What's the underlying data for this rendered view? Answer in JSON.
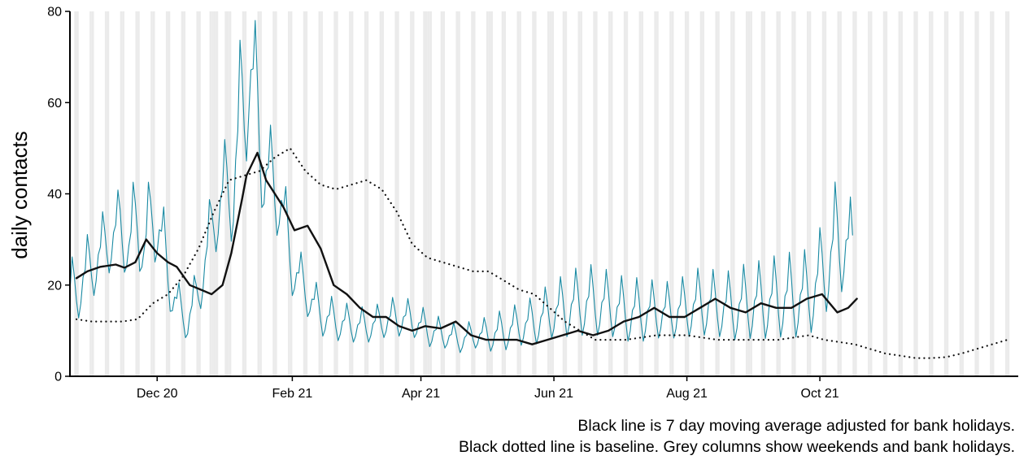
{
  "chart_data": {
    "type": "line",
    "ylabel": "daily contacts",
    "xlabel": "",
    "ylim": [
      0,
      80
    ],
    "xlim": [
      "2020-10-22",
      "2021-12-31"
    ],
    "y_ticks": [
      0,
      20,
      40,
      60,
      80
    ],
    "x_ticks": [
      {
        "date": "2020-12-01",
        "label": "Dec 20"
      },
      {
        "date": "2021-02-01",
        "label": "Feb 21"
      },
      {
        "date": "2021-04-01",
        "label": "Apr 21"
      },
      {
        "date": "2021-06-01",
        "label": "Jun 21"
      },
      {
        "date": "2021-08-01",
        "label": "Aug 21"
      },
      {
        "date": "2021-10-01",
        "label": "Oct 21"
      }
    ],
    "grid": false,
    "weekend_shading": true,
    "bank_holidays": [
      "2020-12-25",
      "2020-12-28",
      "2021-01-01",
      "2021-04-02",
      "2021-04-05",
      "2021-05-03",
      "2021-05-31",
      "2021-08-30"
    ],
    "series": [
      {
        "role": "daily",
        "color": "#1a8aa3",
        "x": [
          "2020-10-22",
          "2020-11-01",
          "2020-11-08",
          "2020-11-14",
          "2020-11-18",
          "2020-11-22",
          "2020-11-25",
          "2020-11-29",
          "2020-12-03",
          "2020-12-08",
          "2020-12-12",
          "2020-12-15",
          "2020-12-19",
          "2020-12-24",
          "2020-12-27",
          "2021-01-01",
          "2021-01-05",
          "2021-01-08",
          "2021-01-10",
          "2021-01-12",
          "2021-01-15",
          "2021-01-19",
          "2021-01-23",
          "2021-01-27",
          "2021-02-01",
          "2021-02-08",
          "2021-02-15",
          "2021-02-22",
          "2021-03-01",
          "2021-03-08",
          "2021-03-15",
          "2021-03-22",
          "2021-03-29",
          "2021-04-05",
          "2021-04-12",
          "2021-04-19",
          "2021-04-26",
          "2021-05-03",
          "2021-05-10",
          "2021-05-17",
          "2021-05-24",
          "2021-05-31",
          "2021-06-07",
          "2021-06-14",
          "2021-06-21",
          "2021-06-28",
          "2021-07-05",
          "2021-07-12",
          "2021-07-19",
          "2021-07-26",
          "2021-08-02",
          "2021-08-09",
          "2021-08-16",
          "2021-08-23",
          "2021-08-30",
          "2021-09-06",
          "2021-09-13",
          "2021-09-20",
          "2021-09-27",
          "2021-10-04",
          "2021-10-08",
          "2021-10-12",
          "2021-10-16"
        ],
        "y": [
          17,
          24,
          29,
          33,
          28,
          35,
          27,
          36,
          30,
          18,
          14,
          12,
          17,
          27,
          35,
          40,
          42,
          55,
          60,
          68,
          62,
          45,
          42,
          38,
          24,
          18,
          13,
          12,
          11,
          11,
          12,
          13,
          12,
          10,
          9,
          8,
          9,
          9,
          10,
          11,
          12,
          14,
          15,
          16,
          16,
          15,
          14,
          14,
          14,
          14,
          15,
          16,
          15,
          15,
          16,
          16,
          17,
          17,
          18,
          24,
          29,
          30,
          26
        ],
        "period_days": 7,
        "swing": [
          10,
          10,
          10,
          10,
          12,
          14,
          12,
          14,
          12,
          8,
          6,
          6,
          8,
          10,
          12,
          14,
          18,
          22,
          24,
          24,
          22,
          16,
          14,
          12,
          9,
          7,
          6,
          6,
          5,
          5,
          5,
          6,
          5,
          5,
          4,
          4,
          4,
          5,
          6,
          6,
          7,
          8,
          9,
          10,
          10,
          9,
          9,
          9,
          8,
          8,
          9,
          10,
          9,
          10,
          11,
          11,
          12,
          12,
          12,
          14,
          16,
          16,
          14
        ],
        "legend": false
      },
      {
        "role": "7 day moving average",
        "color": "#111111",
        "x": [
          "2020-10-25",
          "2020-10-30",
          "2020-11-05",
          "2020-11-12",
          "2020-11-16",
          "2020-11-21",
          "2020-11-26",
          "2020-12-01",
          "2020-12-06",
          "2020-12-10",
          "2020-12-16",
          "2020-12-21",
          "2020-12-26",
          "2020-12-31",
          "2021-01-04",
          "2021-01-09",
          "2021-01-11",
          "2021-01-16",
          "2021-01-20",
          "2021-01-24",
          "2021-01-28",
          "2021-02-02",
          "2021-02-08",
          "2021-02-14",
          "2021-02-20",
          "2021-02-26",
          "2021-03-04",
          "2021-03-10",
          "2021-03-16",
          "2021-03-22",
          "2021-03-28",
          "2021-04-03",
          "2021-04-10",
          "2021-04-17",
          "2021-04-24",
          "2021-05-01",
          "2021-05-08",
          "2021-05-15",
          "2021-05-22",
          "2021-05-29",
          "2021-06-05",
          "2021-06-12",
          "2021-06-19",
          "2021-06-26",
          "2021-07-03",
          "2021-07-10",
          "2021-07-17",
          "2021-07-24",
          "2021-07-31",
          "2021-08-07",
          "2021-08-14",
          "2021-08-21",
          "2021-08-28",
          "2021-09-04",
          "2021-09-11",
          "2021-09-18",
          "2021-09-25",
          "2021-10-02",
          "2021-10-09",
          "2021-10-14",
          "2021-10-18"
        ],
        "y": [
          21.5,
          23,
          24,
          24.5,
          23.8,
          25,
          30,
          27,
          25,
          24,
          20,
          19,
          18,
          20,
          27,
          39,
          44,
          49,
          43,
          40,
          37,
          32,
          33,
          28,
          20,
          18,
          15,
          13,
          13,
          11,
          10,
          11,
          10.5,
          12,
          9,
          8,
          8,
          8,
          7,
          8,
          9,
          10,
          9,
          10,
          12,
          13,
          15,
          13,
          13,
          15,
          17,
          15,
          14,
          16,
          15,
          15,
          17,
          18,
          14,
          15,
          17
        ]
      },
      {
        "role": "baseline",
        "color": "#111111",
        "dash": "dotted",
        "x": [
          "2020-10-25",
          "2020-11-01",
          "2020-11-08",
          "2020-11-15",
          "2020-11-22",
          "2020-11-29",
          "2020-12-06",
          "2020-12-13",
          "2020-12-20",
          "2020-12-27",
          "2021-01-03",
          "2021-01-10",
          "2021-01-17",
          "2021-01-24",
          "2021-01-31",
          "2021-02-07",
          "2021-02-14",
          "2021-02-21",
          "2021-02-28",
          "2021-03-07",
          "2021-03-14",
          "2021-03-21",
          "2021-03-28",
          "2021-04-04",
          "2021-04-11",
          "2021-04-18",
          "2021-04-25",
          "2021-05-02",
          "2021-05-09",
          "2021-05-16",
          "2021-05-23",
          "2021-05-30",
          "2021-06-06",
          "2021-06-13",
          "2021-06-20",
          "2021-06-27",
          "2021-07-04",
          "2021-07-11",
          "2021-07-18",
          "2021-07-25",
          "2021-08-01",
          "2021-08-08",
          "2021-08-15",
          "2021-08-22",
          "2021-08-29",
          "2021-09-05",
          "2021-09-12",
          "2021-09-19",
          "2021-09-26",
          "2021-10-03",
          "2021-10-10",
          "2021-10-17",
          "2021-10-24",
          "2021-10-31",
          "2021-11-07",
          "2021-11-14",
          "2021-11-21",
          "2021-11-28",
          "2021-12-05",
          "2021-12-12",
          "2021-12-19",
          "2021-12-26"
        ],
        "y": [
          12.5,
          12,
          12,
          12,
          12.5,
          16,
          18,
          22,
          28,
          36,
          43,
          44,
          45,
          48,
          50,
          45,
          42,
          41,
          42,
          43,
          41,
          36,
          29,
          26,
          25,
          24,
          23,
          23,
          21,
          19,
          18,
          15,
          12,
          10,
          8,
          8,
          8,
          8.5,
          9,
          9,
          9,
          8.5,
          8,
          8,
          8,
          8,
          8,
          8.5,
          9,
          8,
          7.5,
          7,
          6,
          5,
          4.5,
          4,
          4,
          4.2,
          5,
          6,
          7,
          8
        ]
      }
    ]
  },
  "caption": {
    "line1": "Black line is 7 day moving average adjusted for bank holidays.",
    "line2": "Black dotted line is baseline. Grey columns show weekends and bank holidays."
  }
}
